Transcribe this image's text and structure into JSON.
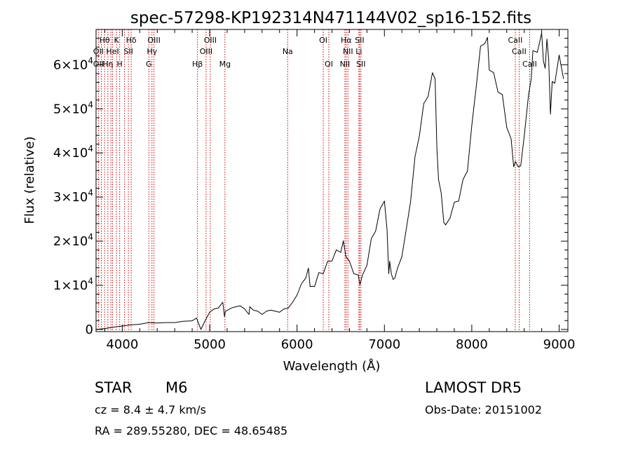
{
  "chart_data": {
    "type": "line",
    "title": "spec-57298-KP192314N471144V02_sp16-152.fits",
    "xlabel": "Wavelength (Å)",
    "ylabel": "Flux (relative)",
    "xlim": [
      3700,
      9100
    ],
    "ylim": [
      -500,
      68000
    ],
    "x_ticks": [
      {
        "value": 4000,
        "label": "4000"
      },
      {
        "value": 5000,
        "label": "5000"
      },
      {
        "value": 6000,
        "label": "6000"
      },
      {
        "value": 7000,
        "label": "7000"
      },
      {
        "value": 8000,
        "label": "8000"
      },
      {
        "value": 9000,
        "label": "9000"
      }
    ],
    "y_ticks": [
      {
        "value": 0,
        "mant": "0",
        "exp": ""
      },
      {
        "value": 10000,
        "mant": "1×10",
        "exp": "4"
      },
      {
        "value": 20000,
        "mant": "2×10",
        "exp": "4"
      },
      {
        "value": 30000,
        "mant": "3×10",
        "exp": "4"
      },
      {
        "value": 40000,
        "mant": "4×10",
        "exp": "4"
      },
      {
        "value": 50000,
        "mant": "5×10",
        "exp": "4"
      },
      {
        "value": 60000,
        "mant": "6×10",
        "exp": "4"
      }
    ],
    "series": [
      {
        "x": [
          3700,
          3800,
          3900,
          4000,
          4100,
          4200,
          4300,
          4400,
          4500,
          4600,
          4700,
          4800,
          4850,
          4900,
          4950,
          5000,
          5050,
          5100,
          5150,
          5170,
          5180,
          5250,
          5300,
          5350,
          5400,
          5450,
          5460,
          5500,
          5550,
          5600,
          5650,
          5700,
          5750,
          5800,
          5850,
          5900,
          5950,
          6000,
          6050,
          6100,
          6130,
          6150,
          6180,
          6200,
          6250,
          6300,
          6350,
          6400,
          6450,
          6500,
          6530,
          6560,
          6600,
          6650,
          6700,
          6720,
          6750,
          6800,
          6850,
          6900,
          6950,
          7000,
          7030,
          7050,
          7060,
          7080,
          7100,
          7120,
          7150,
          7200,
          7250,
          7300,
          7350,
          7400,
          7450,
          7500,
          7550,
          7580,
          7600,
          7620,
          7650,
          7680,
          7700,
          7750,
          7800,
          7850,
          7900,
          7950,
          8000,
          8050,
          8100,
          8150,
          8180,
          8200,
          8250,
          8300,
          8350,
          8400,
          8450,
          8480,
          8500,
          8530,
          8560,
          8600,
          8650,
          8680,
          8700,
          8750,
          8800,
          8820,
          8840,
          8860,
          8880,
          8900,
          8920,
          8950,
          9000,
          9050
        ],
        "y": [
          0,
          200,
          500,
          800,
          1000,
          1200,
          1500,
          1500,
          1500,
          1600,
          1800,
          2000,
          2500,
          0,
          2000,
          4000,
          4500,
          5000,
          6000,
          3000,
          4000,
          5000,
          5000,
          5500,
          4500,
          3500,
          5000,
          4500,
          4000,
          3500,
          4000,
          4500,
          4000,
          4000,
          4500,
          5000,
          6000,
          8000,
          10000,
          12000,
          13500,
          10000,
          9500,
          10000,
          12500,
          13000,
          15000,
          16000,
          17500,
          18000,
          19500,
          17000,
          15000,
          13000,
          12000,
          10500,
          12000,
          15000,
          20000,
          23000,
          26500,
          30000,
          22000,
          13000,
          15000,
          13000,
          11000,
          12000,
          13500,
          17000,
          22000,
          30000,
          38000,
          45000,
          50000,
          54000,
          57000,
          58000,
          40000,
          35000,
          30000,
          25000,
          23000,
          26000,
          28000,
          30000,
          33000,
          37000,
          45000,
          56000,
          63000,
          66000,
          65000,
          60000,
          57000,
          55000,
          52000,
          47000,
          42000,
          38000,
          37000,
          38000,
          36000,
          45000,
          52000,
          58000,
          62000,
          64000,
          66000,
          62000,
          58000,
          67000,
          60000,
          50000,
          55000,
          57000,
          61000,
          58000
        ],
        "color": "#000000"
      }
    ],
    "lines": [
      {
        "x": 3727,
        "color": "#c80000"
      },
      {
        "x": 3760,
        "color": "#c80000"
      },
      {
        "x": 3798,
        "color": "#c80000"
      },
      {
        "x": 3835,
        "color": "#c80000"
      },
      {
        "x": 3870,
        "color": "#c80000"
      },
      {
        "x": 3889,
        "color": "#c80000"
      },
      {
        "x": 3934,
        "color": "#c80000"
      },
      {
        "x": 3970,
        "color": "#c80000"
      },
      {
        "x": 4026,
        "color": "#c80000"
      },
      {
        "x": 4070,
        "color": "#c80000"
      },
      {
        "x": 4102,
        "color": "#c80000"
      },
      {
        "x": 4304,
        "color": "#c80000"
      },
      {
        "x": 4340,
        "color": "#c80000"
      },
      {
        "x": 4363,
        "color": "#c80000"
      },
      {
        "x": 4861,
        "color": "#c80000"
      },
      {
        "x": 4959,
        "color": "#c80000"
      },
      {
        "x": 5007,
        "color": "#c80000"
      },
      {
        "x": 5175,
        "color": "#c80000"
      },
      {
        "x": 5893,
        "color": "#c80000"
      },
      {
        "x": 6300,
        "color": "#c80000"
      },
      {
        "x": 6364,
        "color": "#c80000"
      },
      {
        "x": 6548,
        "color": "#c80000"
      },
      {
        "x": 6563,
        "color": "#c80000"
      },
      {
        "x": 6583,
        "color": "#c80000"
      },
      {
        "x": 6708,
        "color": "#c80000"
      },
      {
        "x": 6716,
        "color": "#c80000"
      },
      {
        "x": 6731,
        "color": "#c80000"
      },
      {
        "x": 8498,
        "color": "#c80000"
      },
      {
        "x": 8542,
        "color": "#c80000"
      },
      {
        "x": 8662,
        "color": "#c80000"
      }
    ],
    "line_labels": [
      {
        "text": "Hθ",
        "x": 3797,
        "row": 0
      },
      {
        "text": "K",
        "x": 3934,
        "row": 0
      },
      {
        "text": "Hδ",
        "x": 4102,
        "row": 0
      },
      {
        "text": "OIII",
        "x": 4363,
        "row": 0
      },
      {
        "text": "OIII",
        "x": 5007,
        "row": 0
      },
      {
        "text": "OI",
        "x": 6300,
        "row": 0
      },
      {
        "text": "Hα",
        "x": 6563,
        "row": 0
      },
      {
        "text": "SII",
        "x": 6716,
        "row": 0
      },
      {
        "text": "CaII",
        "x": 8498,
        "row": 0
      },
      {
        "text": "OII",
        "x": 3727,
        "row": 1
      },
      {
        "text": "HeI",
        "x": 3889,
        "row": 1
      },
      {
        "text": "SII",
        "x": 4070,
        "row": 1
      },
      {
        "text": "Hγ",
        "x": 4340,
        "row": 1
      },
      {
        "text": "OIII",
        "x": 4959,
        "row": 1
      },
      {
        "text": "Na",
        "x": 5893,
        "row": 1
      },
      {
        "text": "NII",
        "x": 6583,
        "row": 1
      },
      {
        "text": "Li",
        "x": 6708,
        "row": 1
      },
      {
        "text": "CaII",
        "x": 8542,
        "row": 1
      },
      {
        "text": "OII",
        "x": 3727,
        "row": 2
      },
      {
        "text": "Hη",
        "x": 3835,
        "row": 2
      },
      {
        "text": "H",
        "x": 3970,
        "row": 2
      },
      {
        "text": "G",
        "x": 4304,
        "row": 2
      },
      {
        "text": "Hβ",
        "x": 4861,
        "row": 2
      },
      {
        "text": "Mg",
        "x": 5175,
        "row": 2
      },
      {
        "text": "OI",
        "x": 6364,
        "row": 2
      },
      {
        "text": "NII",
        "x": 6548,
        "row": 2
      },
      {
        "text": "SII",
        "x": 6731,
        "row": 2
      },
      {
        "text": "CaII",
        "x": 8662,
        "row": 2
      }
    ]
  },
  "footer": {
    "class": "STAR",
    "subclass": "M6",
    "survey": "LAMOST DR5",
    "cz": "cz = 8.4 ± 4.7 km/s",
    "obsdate": "Obs-Date: 20151002",
    "coords": "RA = 289.55280, DEC =  48.65485"
  }
}
